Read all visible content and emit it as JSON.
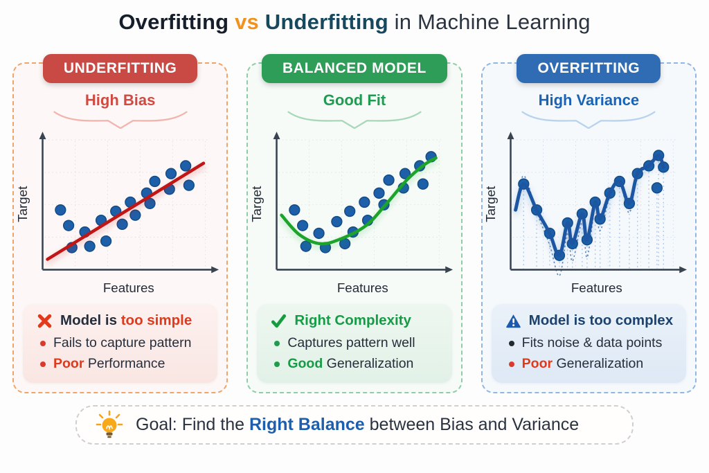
{
  "title": {
    "segments": [
      {
        "text": "Overfitting",
        "style": "title-dark"
      },
      {
        "text": " vs ",
        "style": "title-orange"
      },
      {
        "text": "Underfitting",
        "style": "title-teal"
      },
      {
        "text": " in Machine Learning",
        "style": "title-plain"
      }
    ]
  },
  "panels": [
    {
      "id": "underfitting",
      "header": "UNDERFITTING",
      "subtitle": "High Bias",
      "colors": {
        "header_bg": "#C94944",
        "border": "#F0A468",
        "tint": "#FDF8F7",
        "accent": "#D14A42",
        "brace": "#F2B5AE",
        "card_from": "#FDF1EF",
        "card_to": "#F9E6E3"
      },
      "card": {
        "icon": "x-icon",
        "heading_segments": [
          {
            "text": "Model is ",
            "style": "dark-bold"
          },
          {
            "text": "too simple",
            "style": "red"
          }
        ],
        "bullets": [
          {
            "dot": "red",
            "segments": [
              {
                "text": "Fails to capture pattern",
                "style": "plain"
              }
            ]
          },
          {
            "dot": "red",
            "segments": [
              {
                "text": "Poor",
                "style": "red"
              },
              {
                "text": " Performance",
                "style": "plain"
              }
            ]
          }
        ]
      }
    },
    {
      "id": "balanced-model",
      "header": "BALANCED MODEL",
      "subtitle": "Good Fit",
      "colors": {
        "header_bg": "#2E9D58",
        "border": "#8FCCA8",
        "tint": "#F7FBF8",
        "accent": "#1F9C52",
        "brace": "#A8D8B9",
        "card_from": "#EDF7F0",
        "card_to": "#E2F1E7"
      },
      "card": {
        "icon": "check-icon",
        "heading_segments": [
          {
            "text": "Right Complexity",
            "style": "green"
          }
        ],
        "bullets": [
          {
            "dot": "green",
            "segments": [
              {
                "text": "Captures pattern well",
                "style": "plain"
              }
            ]
          },
          {
            "dot": "green",
            "segments": [
              {
                "text": "Good",
                "style": "green"
              },
              {
                "text": " Generalization",
                "style": "plain"
              }
            ]
          }
        ]
      }
    },
    {
      "id": "overfitting",
      "header": "OVERFITTING",
      "subtitle": "High Variance",
      "colors": {
        "header_bg": "#2F6CB4",
        "border": "#90B6E4",
        "tint": "#F5F9FC",
        "accent": "#1A63B5",
        "brace": "#B9D2EE",
        "card_from": "#EAF1F9",
        "card_to": "#DEE9F5"
      },
      "card": {
        "icon": "warning-icon",
        "heading_segments": [
          {
            "text": "Model is too complex",
            "style": "navy"
          }
        ],
        "bullets": [
          {
            "dot": "black",
            "segments": [
              {
                "text": "Fits noise & data points",
                "style": "plain"
              }
            ]
          },
          {
            "dot": "red",
            "segments": [
              {
                "text": "Poor",
                "style": "red"
              },
              {
                "text": " Generalization",
                "style": "plain"
              }
            ]
          }
        ]
      }
    }
  ],
  "goal": {
    "icon": "lightbulb-icon",
    "segments": [
      {
        "text": "Goal: Find the ",
        "style": "goal-plain"
      },
      {
        "text": "Right Balance",
        "style": "blue-bold"
      },
      {
        "text": " between Bias and Variance",
        "style": "goal-plain"
      }
    ]
  },
  "chart_data": [
    {
      "type": "scatter",
      "title": "Underfitting: straight line misses pattern",
      "xlabel": "Features",
      "ylabel": "Target",
      "x_range": [
        0,
        100
      ],
      "y_range": [
        0,
        100
      ],
      "grid": true,
      "grid_color": "#E0D9D8",
      "dot_color": "#1D5FA8",
      "dot_edge": "#144B85",
      "points": [
        [
          11,
          46
        ],
        [
          16,
          34
        ],
        [
          26,
          29
        ],
        [
          18,
          17
        ],
        [
          29,
          18
        ],
        [
          36,
          38
        ],
        [
          39,
          22
        ],
        [
          45,
          45
        ],
        [
          49,
          35
        ],
        [
          54,
          52
        ],
        [
          57,
          42
        ],
        [
          64,
          59
        ],
        [
          66,
          51
        ],
        [
          69,
          68
        ],
        [
          78,
          62
        ],
        [
          79,
          74
        ],
        [
          88,
          80
        ],
        [
          90,
          65
        ]
      ],
      "fit": {
        "kind": "line",
        "label": "linear fit",
        "color": "#C11212",
        "points": [
          [
            3,
            8
          ],
          [
            99,
            82
          ]
        ]
      }
    },
    {
      "type": "scatter",
      "title": "Balanced model: smooth curve captures trend",
      "xlabel": "Features",
      "ylabel": "Target",
      "x_range": [
        0,
        100
      ],
      "y_range": [
        0,
        100
      ],
      "grid": true,
      "grid_color": "#D8E2DA",
      "dot_color": "#1D5FA8",
      "dot_edge": "#144B85",
      "points": [
        [
          11,
          46
        ],
        [
          16,
          34
        ],
        [
          26,
          28
        ],
        [
          18,
          18
        ],
        [
          30,
          17
        ],
        [
          37,
          37
        ],
        [
          42,
          20
        ],
        [
          45,
          45
        ],
        [
          47,
          29
        ],
        [
          54,
          52
        ],
        [
          56,
          38
        ],
        [
          63,
          59
        ],
        [
          66,
          50
        ],
        [
          69,
          69
        ],
        [
          78,
          63
        ],
        [
          79,
          74
        ],
        [
          88,
          80
        ],
        [
          90,
          66
        ],
        [
          95,
          87
        ]
      ],
      "fit": {
        "kind": "smooth",
        "label": "smooth fit",
        "color": "#1CA32A",
        "points": [
          [
            3,
            42
          ],
          [
            14,
            27
          ],
          [
            27,
            20
          ],
          [
            40,
            24
          ],
          [
            55,
            34
          ],
          [
            67,
            50
          ],
          [
            80,
            69
          ],
          [
            91,
            81
          ],
          [
            98,
            86
          ]
        ]
      }
    },
    {
      "type": "scatter",
      "title": "Overfitting: wiggly curve chases every point",
      "xlabel": "Features",
      "ylabel": "Target",
      "x_range": [
        0,
        100
      ],
      "y_range": [
        0,
        100
      ],
      "grid": true,
      "grid_color": "#C9D9EC",
      "dot_color": "#1D5FA8",
      "dot_edge": "#144B85",
      "points": [
        [
          8,
          66
        ],
        [
          16,
          46
        ],
        [
          24,
          28
        ],
        [
          30,
          11
        ],
        [
          35,
          36
        ],
        [
          38,
          20
        ],
        [
          44,
          43
        ],
        [
          47,
          23
        ],
        [
          52,
          52
        ],
        [
          55,
          39
        ],
        [
          61,
          59
        ],
        [
          67,
          68
        ],
        [
          73,
          51
        ],
        [
          78,
          74
        ],
        [
          85,
          80
        ],
        [
          90,
          63
        ],
        [
          91,
          88
        ],
        [
          94,
          79
        ]
      ],
      "fit": {
        "kind": "wiggle",
        "label": "overfit curve",
        "color": "#1B55A2",
        "echo": true,
        "stems": true,
        "points": [
          [
            3,
            46
          ],
          [
            8,
            66
          ],
          [
            16,
            46
          ],
          [
            24,
            28
          ],
          [
            30,
            11
          ],
          [
            35,
            36
          ],
          [
            38,
            20
          ],
          [
            44,
            43
          ],
          [
            47,
            23
          ],
          [
            52,
            52
          ],
          [
            55,
            39
          ],
          [
            61,
            59
          ],
          [
            67,
            68
          ],
          [
            73,
            51
          ],
          [
            78,
            74
          ],
          [
            85,
            80
          ],
          [
            91,
            88
          ],
          [
            94,
            79
          ]
        ]
      }
    }
  ]
}
